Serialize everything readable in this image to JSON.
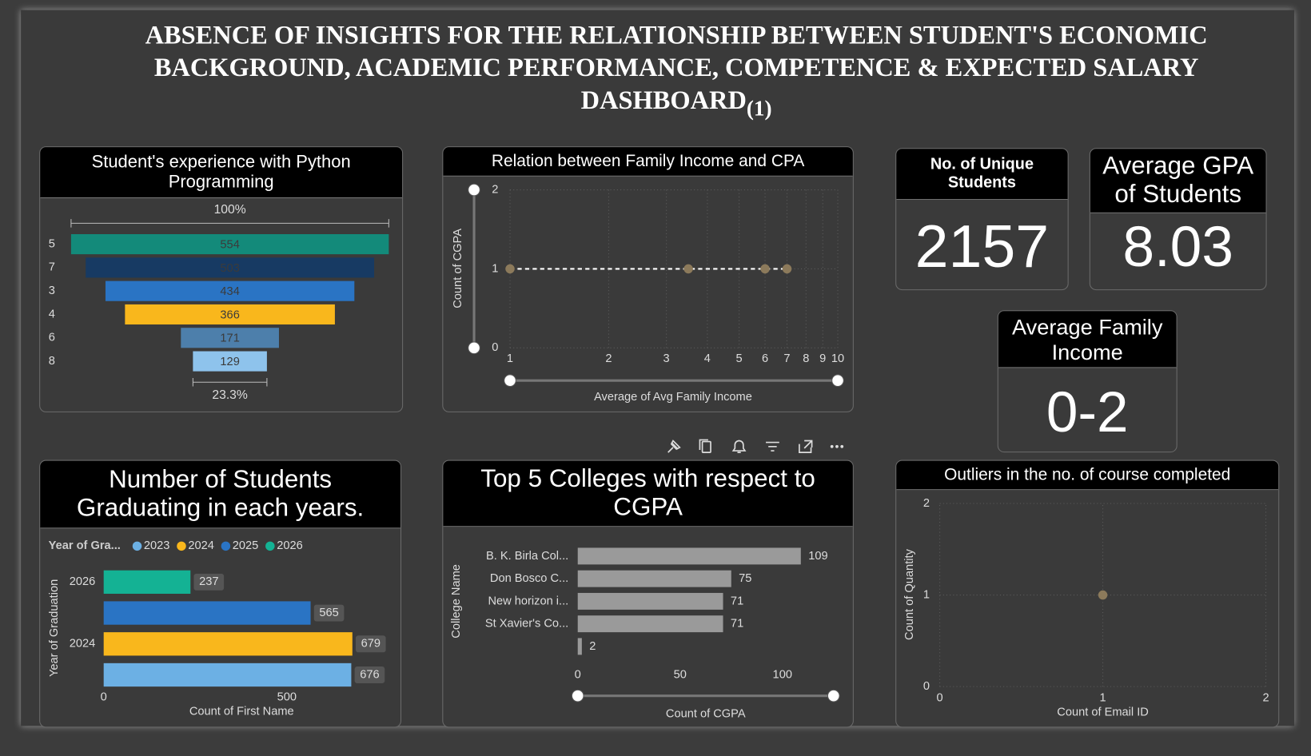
{
  "header": {
    "title": "ABSENCE OF INSIGHTS FOR THE RELATIONSHIP BETWEEN STUDENT'S ECONOMIC BACKGROUND, ACADEMIC PERFORMANCE, COMPETENCE & EXPECTED SALARY DASHBOARD",
    "suffix": "(1)"
  },
  "cards": [
    {
      "label": "No. of Unique Students",
      "value": 2157
    },
    {
      "label": "Average GPA of Students",
      "value": 8.03
    },
    {
      "label": "Average Family Income",
      "value": "0-2"
    }
  ],
  "chart_data": [
    {
      "type": "funnel",
      "title": "Student's experience with Python Programming",
      "categories": [
        "5",
        "7",
        "3",
        "4",
        "6",
        "8"
      ],
      "values": [
        554,
        503,
        434,
        366,
        171,
        129
      ],
      "colors": [
        "#138a7a",
        "#173a63",
        "#2a74c4",
        "#f9b71c",
        "#4d7fab",
        "#8ec3ec"
      ],
      "annotations": [
        "100%",
        "23.3%"
      ]
    },
    {
      "type": "scatter",
      "title": "Relation between Family Income and CPA",
      "x": [
        1,
        3.5,
        6,
        7
      ],
      "values": [
        1,
        1,
        1,
        1
      ],
      "color": "#8c7a5b",
      "connect": true,
      "xlim": [
        1,
        10
      ],
      "xticks": [
        1,
        2,
        3,
        4,
        5,
        6,
        7,
        8,
        9,
        10
      ],
      "log_x": true,
      "ylim": [
        0,
        2
      ],
      "yticks": [
        0,
        1,
        2
      ],
      "grid": true,
      "xlabel": "Average of Avg Family Income",
      "ylabel": "Count of CGPA"
    },
    {
      "type": "bar",
      "orientation": "horizontal",
      "title": "Number of Students Graduating in each years.",
      "categories": [
        "2026",
        null,
        "2024",
        null
      ],
      "values": [
        237,
        565,
        679,
        676
      ],
      "colors": [
        "#14b294",
        "#2a74c4",
        "#f9b71c",
        "#6cb0e4"
      ],
      "legend_title": "Year of Gra...",
      "legend": [
        {
          "name": "2023",
          "color": "#6cb0e4"
        },
        {
          "name": "2024",
          "color": "#f9b71c"
        },
        {
          "name": "2025",
          "color": "#2a74c4"
        },
        {
          "name": "2026",
          "color": "#14b294"
        }
      ],
      "xlim": [
        0,
        767
      ],
      "xticks": [
        0,
        500
      ],
      "xlabel": "Count of First Name",
      "ylabel": "Year of Graduation"
    },
    {
      "type": "bar",
      "orientation": "horizontal",
      "title": "Top 5 Colleges with respect to CGPA",
      "categories": [
        "B. K. Birla Col...",
        "Don Bosco C...",
        "New horizon i...",
        "St Xavier's Co...",
        null
      ],
      "values": [
        109,
        75,
        71,
        71,
        2
      ],
      "color": "#9a9a9a",
      "xlim": [
        0,
        125
      ],
      "xticks": [
        0,
        50,
        100
      ],
      "xlabel": "Count of CGPA",
      "ylabel": "College Name"
    },
    {
      "type": "scatter",
      "title": "Outliers in the no. of course completed",
      "x": [
        1
      ],
      "values": [
        1
      ],
      "color": "#8c7a5b",
      "connect": false,
      "xlim": [
        0,
        2
      ],
      "xticks": [
        0,
        1,
        2
      ],
      "log_x": false,
      "ylim": [
        0,
        2
      ],
      "yticks": [
        0,
        1,
        2
      ],
      "grid": true,
      "xlabel": "Count of Email ID",
      "ylabel": "Count of Quantity"
    }
  ]
}
